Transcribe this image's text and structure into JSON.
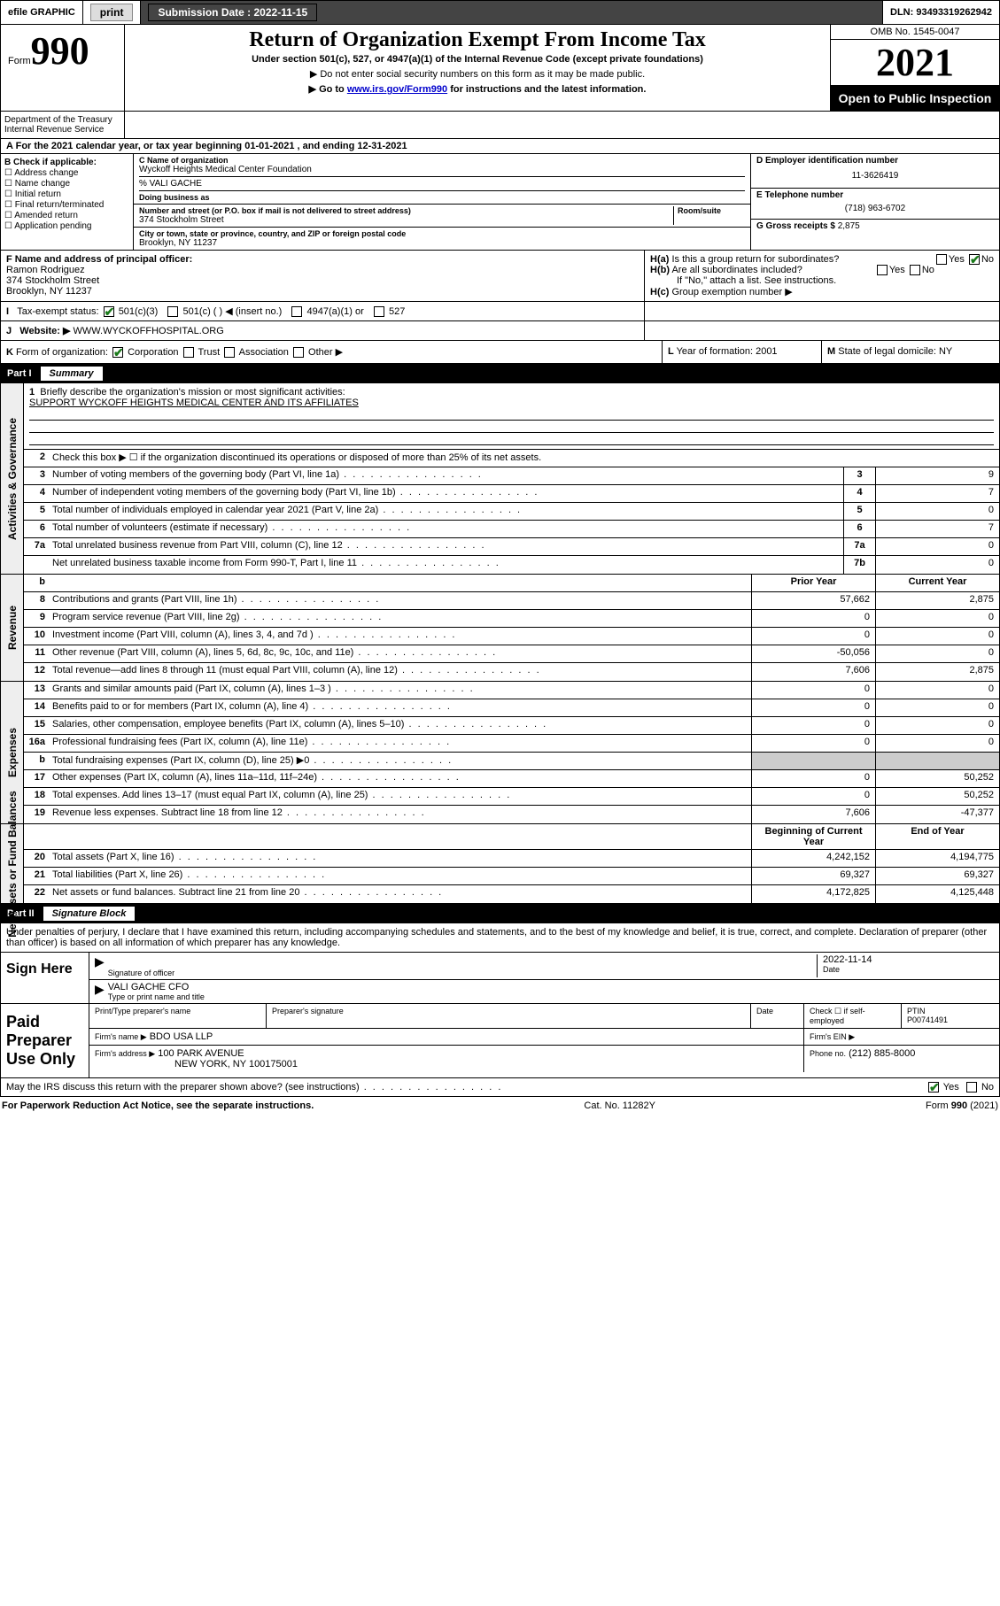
{
  "topbar": {
    "efile": "efile GRAPHIC",
    "print": "print",
    "submission_label": "Submission Date :",
    "submission_date": "2022-11-15",
    "dln_label": "DLN:",
    "dln": "93493319262942"
  },
  "header": {
    "form_word": "Form",
    "form_num": "990",
    "title": "Return of Organization Exempt From Income Tax",
    "subtitle": "Under section 501(c), 527, or 4947(a)(1) of the Internal Revenue Code (except private foundations)",
    "note1": "▶ Do not enter social security numbers on this form as it may be made public.",
    "note2_pre": "▶ Go to ",
    "note2_link": "www.irs.gov/Form990",
    "note2_post": " for instructions and the latest information.",
    "omb": "OMB No. 1545-0047",
    "year": "2021",
    "open": "Open to Public Inspection",
    "dept": "Department of the Treasury\nInternal Revenue Service"
  },
  "A": {
    "text_pre": "For the 2021 calendar year, or tax year beginning ",
    "begin": "01-01-2021",
    "mid": " , and ending ",
    "end": "12-31-2021"
  },
  "B": {
    "label": "Check if applicable:",
    "items": [
      "Address change",
      "Name change",
      "Initial return",
      "Final return/terminated",
      "Amended return",
      "Application pending"
    ]
  },
  "C": {
    "name_lbl": "C Name of organization",
    "name": "Wyckoff Heights Medical Center Foundation",
    "care": "% VALI GACHE",
    "dba_lbl": "Doing business as",
    "addr_lbl": "Number and street (or P.O. box if mail is not delivered to street address)",
    "room_lbl": "Room/suite",
    "addr": "374 Stockholm Street",
    "city_lbl": "City or town, state or province, country, and ZIP or foreign postal code",
    "city": "Brooklyn, NY  11237"
  },
  "D": {
    "lbl": "D Employer identification number",
    "val": "11-3626419"
  },
  "E": {
    "lbl": "E Telephone number",
    "val": "(718) 963-6702"
  },
  "G": {
    "lbl": "G Gross receipts $",
    "val": "2,875"
  },
  "F": {
    "lbl": "F  Name and address of principal officer:",
    "name": "Ramon Rodriguez",
    "addr1": "374 Stockholm Street",
    "addr2": "Brooklyn, NY  11237"
  },
  "H": {
    "a": "Is this a group return for subordinates?",
    "b": "Are all subordinates included?",
    "note": "If \"No,\" attach a list. See instructions.",
    "c": "Group exemption number ▶",
    "yes": "Yes",
    "no": "No"
  },
  "I": {
    "lbl": "Tax-exempt status:",
    "opts": [
      "501(c)(3)",
      "501(c) (  ) ◀ (insert no.)",
      "4947(a)(1) or",
      "527"
    ]
  },
  "J": {
    "lbl": "Website: ▶",
    "val": "WWW.WYCKOFFHOSPITAL.ORG"
  },
  "K": {
    "lbl": "Form of organization:",
    "opts": [
      "Corporation",
      "Trust",
      "Association",
      "Other ▶"
    ]
  },
  "L": {
    "lbl": "Year of formation:",
    "val": "2001"
  },
  "M": {
    "lbl": "State of legal domicile:",
    "val": "NY"
  },
  "partI": {
    "label": "Part I",
    "title": "Summary"
  },
  "summary": {
    "l1_pre": "Briefly describe the organization's mission or most significant activities:",
    "l1_val": "SUPPORT WYCKOFF HEIGHTS MEDICAL CENTER AND ITS AFFILIATES",
    "l2": "Check this box ▶ ☐  if the organization discontinued its operations or disposed of more than 25% of its net assets.",
    "rows_gov": [
      {
        "n": "3",
        "d": "Number of voting members of the governing body (Part VI, line 1a)",
        "b": "3",
        "v": "9"
      },
      {
        "n": "4",
        "d": "Number of independent voting members of the governing body (Part VI, line 1b)",
        "b": "4",
        "v": "7"
      },
      {
        "n": "5",
        "d": "Total number of individuals employed in calendar year 2021 (Part V, line 2a)",
        "b": "5",
        "v": "0"
      },
      {
        "n": "6",
        "d": "Total number of volunteers (estimate if necessary)",
        "b": "6",
        "v": "7"
      },
      {
        "n": "7a",
        "d": "Total unrelated business revenue from Part VIII, column (C), line 12",
        "b": "7a",
        "v": "0"
      },
      {
        "n": "",
        "d": "Net unrelated business taxable income from Form 990-T, Part I, line 11",
        "b": "7b",
        "v": "0"
      }
    ],
    "col_prior": "Prior Year",
    "col_current": "Current Year",
    "rows_rev": [
      {
        "n": "8",
        "d": "Contributions and grants (Part VIII, line 1h)",
        "p": "57,662",
        "c": "2,875"
      },
      {
        "n": "9",
        "d": "Program service revenue (Part VIII, line 2g)",
        "p": "0",
        "c": "0"
      },
      {
        "n": "10",
        "d": "Investment income (Part VIII, column (A), lines 3, 4, and 7d )",
        "p": "0",
        "c": "0"
      },
      {
        "n": "11",
        "d": "Other revenue (Part VIII, column (A), lines 5, 6d, 8c, 9c, 10c, and 11e)",
        "p": "-50,056",
        "c": "0"
      },
      {
        "n": "12",
        "d": "Total revenue—add lines 8 through 11 (must equal Part VIII, column (A), line 12)",
        "p": "7,606",
        "c": "2,875"
      }
    ],
    "rows_exp": [
      {
        "n": "13",
        "d": "Grants and similar amounts paid (Part IX, column (A), lines 1–3 )",
        "p": "0",
        "c": "0"
      },
      {
        "n": "14",
        "d": "Benefits paid to or for members (Part IX, column (A), line 4)",
        "p": "0",
        "c": "0"
      },
      {
        "n": "15",
        "d": "Salaries, other compensation, employee benefits (Part IX, column (A), lines 5–10)",
        "p": "0",
        "c": "0"
      },
      {
        "n": "16a",
        "d": "Professional fundraising fees (Part IX, column (A), line 11e)",
        "p": "0",
        "c": "0"
      },
      {
        "n": "b",
        "d": "Total fundraising expenses (Part IX, column (D), line 25) ▶0",
        "p": "",
        "c": "",
        "shade": true
      },
      {
        "n": "17",
        "d": "Other expenses (Part IX, column (A), lines 11a–11d, 11f–24e)",
        "p": "0",
        "c": "50,252"
      },
      {
        "n": "18",
        "d": "Total expenses. Add lines 13–17 (must equal Part IX, column (A), line 25)",
        "p": "0",
        "c": "50,252"
      },
      {
        "n": "19",
        "d": "Revenue less expenses. Subtract line 18 from line 12",
        "p": "7,606",
        "c": "-47,377"
      }
    ],
    "col_begin": "Beginning of Current Year",
    "col_end": "End of Year",
    "rows_net": [
      {
        "n": "20",
        "d": "Total assets (Part X, line 16)",
        "p": "4,242,152",
        "c": "4,194,775"
      },
      {
        "n": "21",
        "d": "Total liabilities (Part X, line 26)",
        "p": "69,327",
        "c": "69,327"
      },
      {
        "n": "22",
        "d": "Net assets or fund balances. Subtract line 21 from line 20",
        "p": "4,172,825",
        "c": "4,125,448"
      }
    ]
  },
  "sidelabels": {
    "gov": "Activities & Governance",
    "rev": "Revenue",
    "exp": "Expenses",
    "net": "Net Assets or Fund Balances"
  },
  "partII": {
    "label": "Part II",
    "title": "Signature Block"
  },
  "sig": {
    "decl": "Under penalties of perjury, I declare that I have examined this return, including accompanying schedules and statements, and to the best of my knowledge and belief, it is true, correct, and complete. Declaration of preparer (other than officer) is based on all information of which preparer has any knowledge.",
    "sign_here": "Sign Here",
    "sig_officer": "Signature of officer",
    "date_lbl": "Date",
    "date": "2022-11-14",
    "name": "VALI GACHE  CFO",
    "name_lbl": "Type or print name and title",
    "paid": "Paid Preparer Use Only",
    "h_prep": "Print/Type preparer's name",
    "h_sig": "Preparer's signature",
    "h_date": "Date",
    "h_check": "Check ☐ if self-employed",
    "h_ptin": "PTIN",
    "ptin": "P00741491",
    "firm_name_lbl": "Firm's name    ▶",
    "firm_name": "BDO USA LLP",
    "firm_ein_lbl": "Firm's EIN ▶",
    "firm_addr_lbl": "Firm's address ▶",
    "firm_addr1": "100 PARK AVENUE",
    "firm_addr2": "NEW YORK, NY  100175001",
    "firm_phone_lbl": "Phone no.",
    "firm_phone": "(212) 885-8000",
    "may": "May the IRS discuss this return with the preparer shown above? (see instructions)"
  },
  "footer": {
    "left": "For Paperwork Reduction Act Notice, see the separate instructions.",
    "mid": "Cat. No. 11282Y",
    "right": "Form 990 (2021)"
  }
}
